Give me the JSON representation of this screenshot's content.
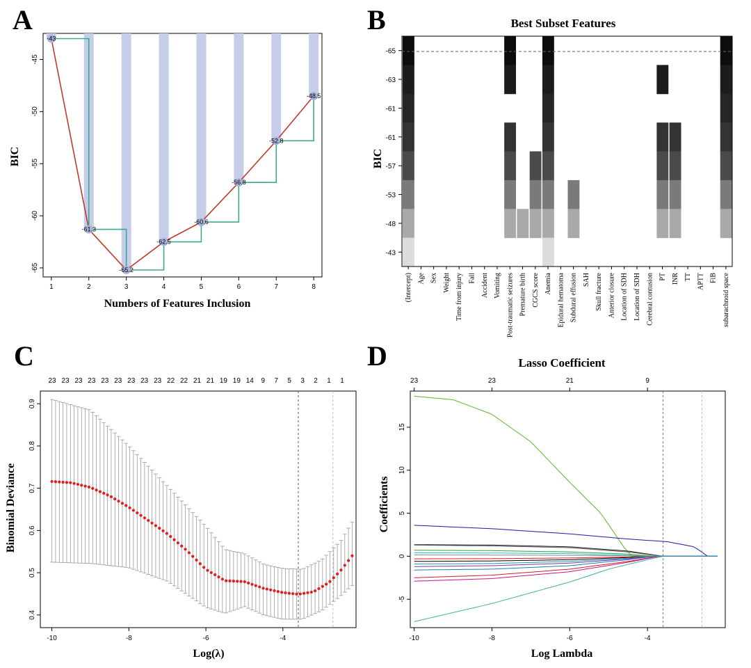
{
  "chart_data": [
    {
      "panel": "A",
      "type": "bar",
      "title": "",
      "xlabel": "Numbers of Features Inclusion",
      "ylabel": "BIC",
      "x": [
        1,
        2,
        3,
        4,
        5,
        6,
        7,
        8
      ],
      "values": [
        -43,
        -61.3,
        -65.2,
        -62.5,
        -60.6,
        -56.8,
        -52.8,
        -48.5
      ],
      "labels": [
        "-43",
        "-61.3",
        "-65.2",
        "-62.5",
        "-60.6",
        "-56.8",
        "-52.8",
        "-48.5"
      ],
      "yticks": [
        -45,
        -50,
        -55,
        -60,
        -65
      ],
      "ylim": [
        -65.2,
        -42.5
      ],
      "colors": {
        "bar": "#c5cde9",
        "line": "#c0392b",
        "step": "#3aaa8f",
        "point": "#a9b4dc"
      }
    },
    {
      "panel": "B",
      "type": "heatmap",
      "title": "Best Subset Features",
      "xlabel": "",
      "ylabel": "BIC",
      "columns": [
        "(Intercept)",
        "Age",
        "Sex",
        "Weight",
        "Time from injury",
        "Fall",
        "Accident",
        "Vomiting",
        "Post-traumatic seizures",
        "Premature birth",
        "CGCS score",
        "Anemia",
        "Epidural hematoma",
        "Subdural effusion",
        "SAH",
        "Skull fracture",
        "Anterior closure",
        "Location of SDH",
        "Location of SDH",
        "Cerebral contusion",
        "PT",
        "INR",
        "TT",
        "APTT",
        "FiB",
        "subarachnoid space"
      ],
      "row_labels": [
        "-65",
        "-63",
        "-61",
        "-61",
        "-57",
        "-53",
        "-48",
        "-43"
      ],
      "row_shades": [
        "#0d0d0d",
        "#1c1c1c",
        "#262626",
        "#333333",
        "#4a4a4a",
        "#7a7a7a",
        "#a9a9a9",
        "#dcdcdc"
      ],
      "cells": [
        [
          0,
          8,
          11,
          25
        ],
        [
          0,
          8,
          11,
          20,
          25
        ],
        [
          0,
          11,
          25
        ],
        [
          0,
          8,
          11,
          20,
          21,
          25
        ],
        [
          0,
          8,
          10,
          11,
          20,
          21,
          25
        ],
        [
          0,
          8,
          10,
          11,
          13,
          20,
          21,
          25
        ],
        [
          0,
          8,
          9,
          10,
          11,
          13,
          20,
          21,
          25
        ],
        [
          0,
          11
        ]
      ]
    },
    {
      "panel": "C",
      "type": "line",
      "title": "",
      "xlabel": "Log(λ)",
      "ylabel": "Binomial Deviance",
      "top_labels": [
        "23",
        "23",
        "23",
        "23",
        "23",
        "23",
        "23",
        "23",
        "23",
        "22",
        "22",
        "21",
        "21",
        "19",
        "19",
        "14",
        "9",
        "7",
        "5",
        "3",
        "2",
        "1",
        "1"
      ],
      "xlim": [
        -10.3,
        -2.1
      ],
      "ylim": [
        0.37,
        0.93
      ],
      "xticks": [
        -10,
        -8,
        -6,
        -4
      ],
      "yticks": [
        0.4,
        0.5,
        0.6,
        0.7,
        0.8,
        0.9
      ],
      "lambda_min": -3.6,
      "lambda_1se": -2.7,
      "curve_knots": [
        [
          -10,
          0.716
        ],
        [
          -9.5,
          0.713
        ],
        [
          -9,
          0.702
        ],
        [
          -8.5,
          0.682
        ],
        [
          -8,
          0.655
        ],
        [
          -7.5,
          0.624
        ],
        [
          -7,
          0.592
        ],
        [
          -6.5,
          0.553
        ],
        [
          -6,
          0.508
        ],
        [
          -5.5,
          0.481
        ],
        [
          -5,
          0.479
        ],
        [
          -4.5,
          0.463
        ],
        [
          -4,
          0.453
        ],
        [
          -3.6,
          0.449
        ],
        [
          -3.2,
          0.455
        ],
        [
          -2.8,
          0.477
        ],
        [
          -2.5,
          0.505
        ],
        [
          -2.2,
          0.54
        ]
      ],
      "lower_knots": [
        [
          -10,
          0.525
        ],
        [
          -9,
          0.522
        ],
        [
          -8,
          0.512
        ],
        [
          -7,
          0.48
        ],
        [
          -6,
          0.418
        ],
        [
          -5.5,
          0.404
        ],
        [
          -5,
          0.42
        ],
        [
          -4.5,
          0.4
        ],
        [
          -4,
          0.39
        ],
        [
          -3.5,
          0.39
        ],
        [
          -3,
          0.41
        ],
        [
          -2.5,
          0.445
        ],
        [
          -2.2,
          0.47
        ]
      ],
      "upper_knots": [
        [
          -10,
          0.91
        ],
        [
          -9,
          0.885
        ],
        [
          -8,
          0.8
        ],
        [
          -7,
          0.705
        ],
        [
          -6,
          0.61
        ],
        [
          -5.5,
          0.555
        ],
        [
          -5,
          0.545
        ],
        [
          -4.5,
          0.52
        ],
        [
          -4,
          0.51
        ],
        [
          -3.5,
          0.508
        ],
        [
          -3,
          0.53
        ],
        [
          -2.5,
          0.575
        ],
        [
          -2.2,
          0.62
        ]
      ],
      "colors": {
        "point": "#e41a1c",
        "bar": "#9a9a9a",
        "vline": "#555555"
      }
    },
    {
      "panel": "D",
      "type": "line",
      "title": "Lasso Coefficient",
      "xlabel": "Log Lambda",
      "ylabel": "Coefficients",
      "top_labels": [
        "23",
        "23",
        "21",
        "9"
      ],
      "top_label_x": [
        -10,
        -8,
        -6,
        -4
      ],
      "xlim": [
        -10.1,
        -2.0
      ],
      "ylim": [
        -8.3,
        19.2
      ],
      "xticks": [
        -10,
        -8,
        -6,
        -4
      ],
      "yticks": [
        -5,
        0,
        5,
        10,
        15
      ],
      "lambda_min": -3.6,
      "lambda_1se": -2.6,
      "series": [
        {
          "color": "#5ab82a",
          "pts": [
            [
              -10,
              18.6
            ],
            [
              -9,
              18.2
            ],
            [
              -8,
              16.5
            ],
            [
              -7,
              13.3
            ],
            [
              -6,
              8.6
            ],
            [
              -5.2,
              5.0
            ],
            [
              -4.6,
              1.0
            ],
            [
              -4.4,
              0
            ]
          ]
        },
        {
          "color": "#1a1aa0",
          "pts": [
            [
              -10,
              3.6
            ],
            [
              -8,
              3.2
            ],
            [
              -6,
              2.6
            ],
            [
              -4.5,
              2.0
            ],
            [
              -3.5,
              1.7
            ],
            [
              -2.8,
              1.1
            ],
            [
              -2.45,
              0
            ]
          ]
        },
        {
          "color": "#3fae9d",
          "pts": [
            [
              -10,
              -7.6
            ],
            [
              -8,
              -5.5
            ],
            [
              -6,
              -3.0
            ],
            [
              -5,
              -1.5
            ],
            [
              -4,
              -0.4
            ],
            [
              -3.6,
              0
            ]
          ]
        },
        {
          "color": "#222222",
          "pts": [
            [
              -10,
              1.35
            ],
            [
              -8,
              1.3
            ],
            [
              -6,
              1.1
            ],
            [
              -4.5,
              0.6
            ],
            [
              -3.6,
              0
            ]
          ]
        },
        {
          "color": "#555555",
          "pts": [
            [
              -10,
              1.3
            ],
            [
              -8,
              1.2
            ],
            [
              -6,
              1.0
            ],
            [
              -4.5,
              0.5
            ],
            [
              -3.6,
              0
            ]
          ]
        },
        {
          "color": "#d01c2e",
          "pts": [
            [
              -10,
              -2.5
            ],
            [
              -8,
              -2.2
            ],
            [
              -6,
              -1.5
            ],
            [
              -4.5,
              -0.6
            ],
            [
              -3.7,
              0
            ]
          ]
        },
        {
          "color": "#c71585",
          "pts": [
            [
              -10,
              -2.9
            ],
            [
              -8,
              -2.6
            ],
            [
              -6,
              -1.8
            ],
            [
              -4.5,
              -0.7
            ],
            [
              -3.7,
              0
            ]
          ]
        },
        {
          "color": "#1f78b4",
          "pts": [
            [
              -10,
              -1.6
            ],
            [
              -8,
              -1.5
            ],
            [
              -6,
              -1.1
            ],
            [
              -4.5,
              -0.4
            ],
            [
              -3.8,
              0
            ]
          ]
        },
        {
          "color": "#000000",
          "pts": [
            [
              -10,
              -0.6
            ],
            [
              -8,
              -0.55
            ],
            [
              -6,
              -0.4
            ],
            [
              -4.5,
              -0.15
            ],
            [
              -3.8,
              0
            ]
          ]
        },
        {
          "color": "#33a02c",
          "pts": [
            [
              -10,
              0.7
            ],
            [
              -8,
              0.65
            ],
            [
              -6,
              0.5
            ],
            [
              -4.5,
              0.25
            ],
            [
              -3.8,
              0
            ]
          ]
        },
        {
          "color": "#6a3d9a",
          "pts": [
            [
              -10,
              -1.2
            ],
            [
              -8,
              -1.1
            ],
            [
              -6,
              -0.8
            ],
            [
              -4.5,
              -0.3
            ],
            [
              -3.8,
              0
            ]
          ]
        },
        {
          "color": "#17becf",
          "pts": [
            [
              -10,
              0.4
            ],
            [
              -8,
              0.38
            ],
            [
              -6,
              0.3
            ],
            [
              -4.5,
              0.12
            ],
            [
              -3.9,
              0
            ]
          ]
        },
        {
          "color": "#e31a1c",
          "pts": [
            [
              -10,
              -0.3
            ],
            [
              -8,
              -0.28
            ],
            [
              -6,
              -0.2
            ],
            [
              -4.5,
              -0.08
            ],
            [
              -3.9,
              0
            ]
          ]
        },
        {
          "color": "#888888",
          "pts": [
            [
              -10,
              0.15
            ],
            [
              -8,
              0.14
            ],
            [
              -6,
              0.1
            ],
            [
              -4.5,
              0.05
            ],
            [
              -4.0,
              0
            ]
          ]
        },
        {
          "color": "#2b8cbe",
          "pts": [
            [
              -10,
              -0.9
            ],
            [
              -8,
              -0.85
            ],
            [
              -6,
              -0.6
            ],
            [
              -4.5,
              -0.25
            ],
            [
              -3.8,
              0
            ]
          ]
        }
      ]
    }
  ],
  "panel_letters": [
    "A",
    "B",
    "C",
    "D"
  ]
}
